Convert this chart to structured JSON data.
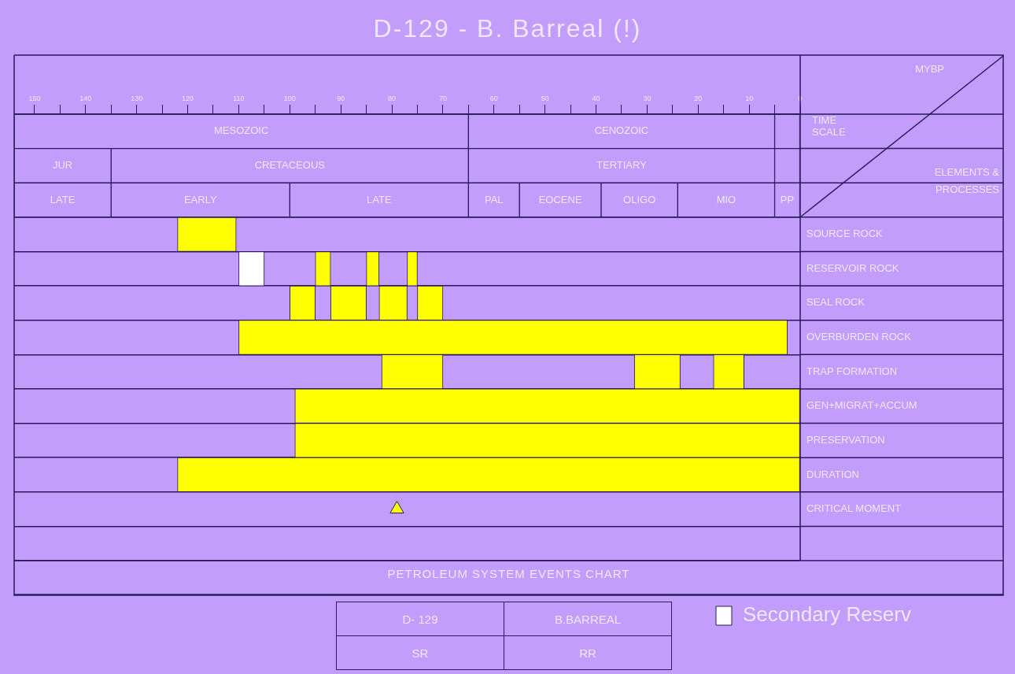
{
  "chart_data": {
    "type": "bar",
    "orientation": "horizontal",
    "title": "D-129 - B. Barreal (!)",
    "xlabel": "MYBP",
    "ylabel": "ELEMENTS & PROCESSES",
    "annotations": [
      "TIME SCALE",
      "PETROLEUM SYSTEM EVENTS CHART",
      "D- 129",
      "B.BARREAL",
      "SR",
      "RR"
    ],
    "categories": [
      null,
      null,
      null,
      "SOURCE ROCK",
      "RESERVOIR ROCK",
      "SEAL ROCK",
      "OVERBURDEN ROCK",
      "TRAP FORMATION",
      "GEN+MIGRAT+ACCUM",
      "PRESERVATION",
      "DURATION",
      "CRITICAL MOMENT",
      null
    ],
    "xlim": [
      154,
      0
    ],
    "xticks": [
      150,
      {
        "value": 145,
        "label": null
      },
      140,
      {
        "value": 135,
        "label": null
      },
      130,
      {
        "value": 125,
        "label": null
      },
      120,
      {
        "value": 115,
        "label": null
      },
      110,
      {
        "value": 105,
        "label": null
      },
      100,
      {
        "value": 95,
        "label": null
      },
      90,
      {
        "value": 85,
        "label": null
      },
      80,
      {
        "value": 75,
        "label": null
      },
      70,
      {
        "value": 65,
        "label": null
      },
      60,
      {
        "value": 55,
        "label": null
      },
      50,
      {
        "value": 45,
        "label": null
      },
      40,
      {
        "value": 35,
        "label": null
      },
      30,
      {
        "value": 25,
        "label": null
      },
      20,
      {
        "value": 15,
        "label": null
      },
      10,
      {
        "value": 5,
        "label": null
      },
      0
    ],
    "grid": "y",
    "legend": "bottom right",
    "marker": "triangle",
    "series": [
      {
        "color": "#c39dfb",
        "values": [
          89,
          19,
          19,
          null,
          null,
          null,
          null,
          null,
          null,
          null,
          null,
          null,
          null
        ],
        "base": [
          65,
          135,
          135,
          null,
          null,
          null,
          null,
          null,
          null,
          null,
          null,
          null,
          null
        ],
        "value_labels": [
          "MESOZOIC",
          "JUR",
          "LATE",
          null,
          null,
          null,
          null,
          null,
          null,
          null,
          null,
          null,
          null
        ]
      },
      {
        "color": "#c39dfb",
        "values": [
          60,
          70,
          35,
          null,
          null,
          null,
          null,
          null,
          null,
          null,
          null,
          null,
          null
        ],
        "base": [
          5,
          65,
          100,
          null,
          null,
          null,
          null,
          null,
          null,
          null,
          null,
          null,
          null
        ],
        "value_labels": [
          "CENOZOIC",
          "CRETACEOUS",
          "EARLY",
          null,
          null,
          null,
          null,
          null,
          null,
          null,
          null,
          null,
          null
        ]
      },
      {
        "color": "#c39dfb",
        "values": [
          5,
          60,
          35,
          null,
          null,
          null,
          null,
          null,
          null,
          null,
          null,
          null,
          null
        ],
        "base": [
          0,
          5,
          65,
          null,
          null,
          null,
          null,
          null,
          null,
          null,
          null,
          null,
          null
        ],
        "value_labels": [
          null,
          "TERTIARY",
          "LATE",
          null,
          null,
          null,
          null,
          null,
          null,
          null,
          null,
          null,
          null
        ]
      },
      {
        "color": "#c39dfb",
        "values": [
          null,
          5,
          10,
          null,
          null,
          null,
          null,
          null,
          null,
          null,
          null,
          null,
          null
        ],
        "base": [
          null,
          0,
          55,
          null,
          null,
          null,
          null,
          null,
          null,
          null,
          null,
          null,
          null
        ],
        "value_labels": [
          null,
          null,
          "PAL",
          null,
          null,
          null,
          null,
          null,
          null,
          null,
          null,
          null,
          null
        ]
      },
      {
        "color": "#c39dfb",
        "values": [
          null,
          null,
          16,
          null,
          null,
          null,
          null,
          null,
          null,
          null,
          null,
          null,
          null
        ],
        "base": [
          null,
          null,
          39,
          null,
          null,
          null,
          null,
          null,
          null,
          null,
          null,
          null,
          null
        ],
        "value_labels": [
          null,
          null,
          "EOCENE",
          null,
          null,
          null,
          null,
          null,
          null,
          null,
          null,
          null,
          null
        ]
      },
      {
        "color": "#c39dfb",
        "values": [
          null,
          null,
          15,
          null,
          null,
          null,
          null,
          null,
          null,
          null,
          null,
          null,
          null
        ],
        "base": [
          null,
          null,
          24,
          null,
          null,
          null,
          null,
          null,
          null,
          null,
          null,
          null,
          null
        ],
        "value_labels": [
          null,
          null,
          "OLIGO",
          null,
          null,
          null,
          null,
          null,
          null,
          null,
          null,
          null,
          null
        ]
      },
      {
        "color": "#c39dfb",
        "values": [
          null,
          null,
          19,
          null,
          null,
          null,
          null,
          null,
          null,
          null,
          null,
          null,
          null
        ],
        "base": [
          null,
          null,
          5,
          null,
          null,
          null,
          null,
          null,
          null,
          null,
          null,
          null,
          null
        ],
        "value_labels": [
          null,
          null,
          "MIO",
          null,
          null,
          null,
          null,
          null,
          null,
          null,
          null,
          null,
          null
        ]
      },
      {
        "color": "#c39dfb",
        "values": [
          null,
          null,
          5,
          null,
          null,
          null,
          null,
          null,
          null,
          null,
          null,
          null,
          null
        ],
        "base": [
          null,
          null,
          0,
          null,
          null,
          null,
          null,
          null,
          null,
          null,
          null,
          null,
          null
        ],
        "value_labels": [
          null,
          null,
          "PP",
          null,
          null,
          null,
          null,
          null,
          null,
          null,
          null,
          null,
          null
        ]
      },
      {
        "color": "#ffff00",
        "values": [
          null,
          null,
          null,
          11.5,
          3,
          5,
          107.5,
          12,
          99,
          99,
          122,
          null,
          null
        ],
        "base": [
          null,
          null,
          null,
          110.5,
          92,
          95,
          2.5,
          70,
          0,
          0,
          0,
          null,
          null
        ]
      },
      {
        "color": "#ffff00",
        "values": [
          null,
          null,
          null,
          null,
          2.5,
          7,
          null,
          9,
          null,
          null,
          null,
          null,
          null
        ],
        "base": [
          null,
          null,
          null,
          null,
          82.5,
          85,
          null,
          23.5,
          null,
          null,
          null,
          null,
          null
        ]
      },
      {
        "color": "#ffff00",
        "values": [
          null,
          null,
          null,
          null,
          2,
          5.5,
          null,
          6,
          null,
          null,
          null,
          null,
          null
        ],
        "base": [
          null,
          null,
          null,
          null,
          75,
          77,
          null,
          11,
          null,
          null,
          null,
          null,
          null
        ]
      },
      {
        "color": "#ffff00",
        "values": [
          null,
          null,
          null,
          null,
          null,
          5,
          null,
          null,
          null,
          null,
          null,
          null,
          null
        ],
        "base": [
          null,
          null,
          null,
          null,
          null,
          70,
          null,
          null,
          null,
          null,
          null,
          null,
          null
        ]
      },
      {
        "name": "Secondary Reserv",
        "color": "#ffffff",
        "values": [
          null,
          null,
          null,
          null,
          5,
          null,
          null,
          null,
          null,
          null,
          null,
          null,
          null
        ],
        "base": [
          null,
          null,
          null,
          null,
          105,
          null,
          null,
          null,
          null,
          null,
          null,
          null,
          null
        ]
      },
      {
        "type": "scatter",
        "color": "#ffff00",
        "values": [
          null,
          null,
          null,
          null,
          null,
          null,
          null,
          null,
          null,
          null,
          null,
          79,
          null
        ]
      }
    ]
  }
}
